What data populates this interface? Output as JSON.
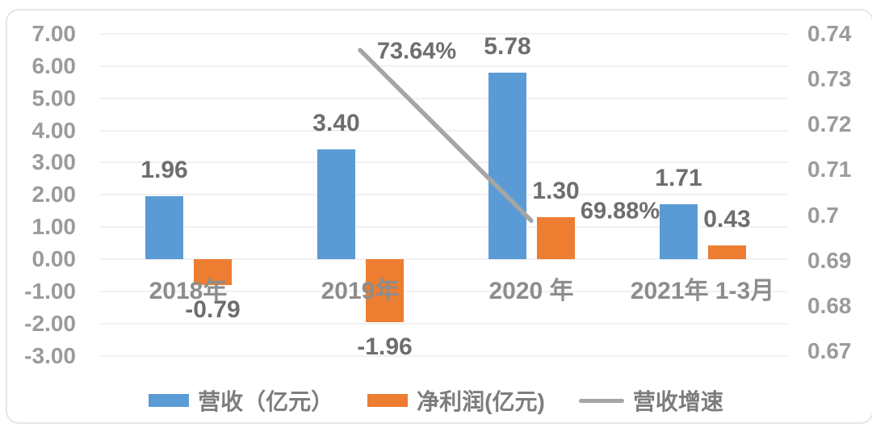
{
  "chart_data": {
    "type": "bar",
    "title": "",
    "xlabel": "",
    "ylabel": "",
    "categories": [
      "2018年",
      "2019年",
      "2020 年",
      "2021年 1-3月"
    ],
    "series": [
      {
        "name": "营收（亿元）",
        "type": "bar",
        "axis": "left",
        "color": "#5B9BD5",
        "values": [
          1.96,
          3.4,
          5.78,
          1.71
        ],
        "labels": [
          "1.96",
          "3.40",
          "5.78",
          "1.71"
        ]
      },
      {
        "name": "净利润(亿元)",
        "type": "bar",
        "axis": "left",
        "color": "#ED7D31",
        "values": [
          -0.79,
          -1.96,
          1.3,
          0.43
        ],
        "labels": [
          "-0.79",
          "-1.96",
          "1.30",
          "0.43"
        ]
      },
      {
        "name": "营收增速",
        "type": "line",
        "axis": "right",
        "color": "#A5A5A5",
        "values": [
          null,
          0.7364,
          0.6988,
          null
        ],
        "labels": [
          null,
          "73.64%",
          "69.88%",
          null
        ],
        "label_offsets": [
          null,
          [
            70,
            2
          ],
          [
            110,
            -11
          ],
          null
        ]
      }
    ],
    "left_axis": {
      "min": -3,
      "max": 7,
      "step": 1,
      "ticks": [
        "7.00",
        "6.00",
        "5.00",
        "4.00",
        "3.00",
        "2.00",
        "1.00",
        "0.00",
        "-1.00",
        "-2.00",
        "-3.00"
      ]
    },
    "right_axis": {
      "min": 0.67,
      "max": 0.74,
      "step": 0.01,
      "ticks": [
        "0.74",
        "0.73",
        "0.72",
        "0.71",
        "0.7",
        "0.69",
        "0.68",
        "0.67"
      ]
    },
    "grid": true,
    "legend_position": "bottom",
    "legend": [
      "营收（亿元）",
      "净利润(亿元)",
      "营收增速"
    ]
  },
  "colors": {
    "revenue_bar": "#5B9BD5",
    "profit_bar": "#ED7D31",
    "growth_line": "#A5A5A5",
    "axis_text": "#9b9b9b",
    "label_text": "#6e6e6e",
    "gridline": "#f1f1f1"
  }
}
